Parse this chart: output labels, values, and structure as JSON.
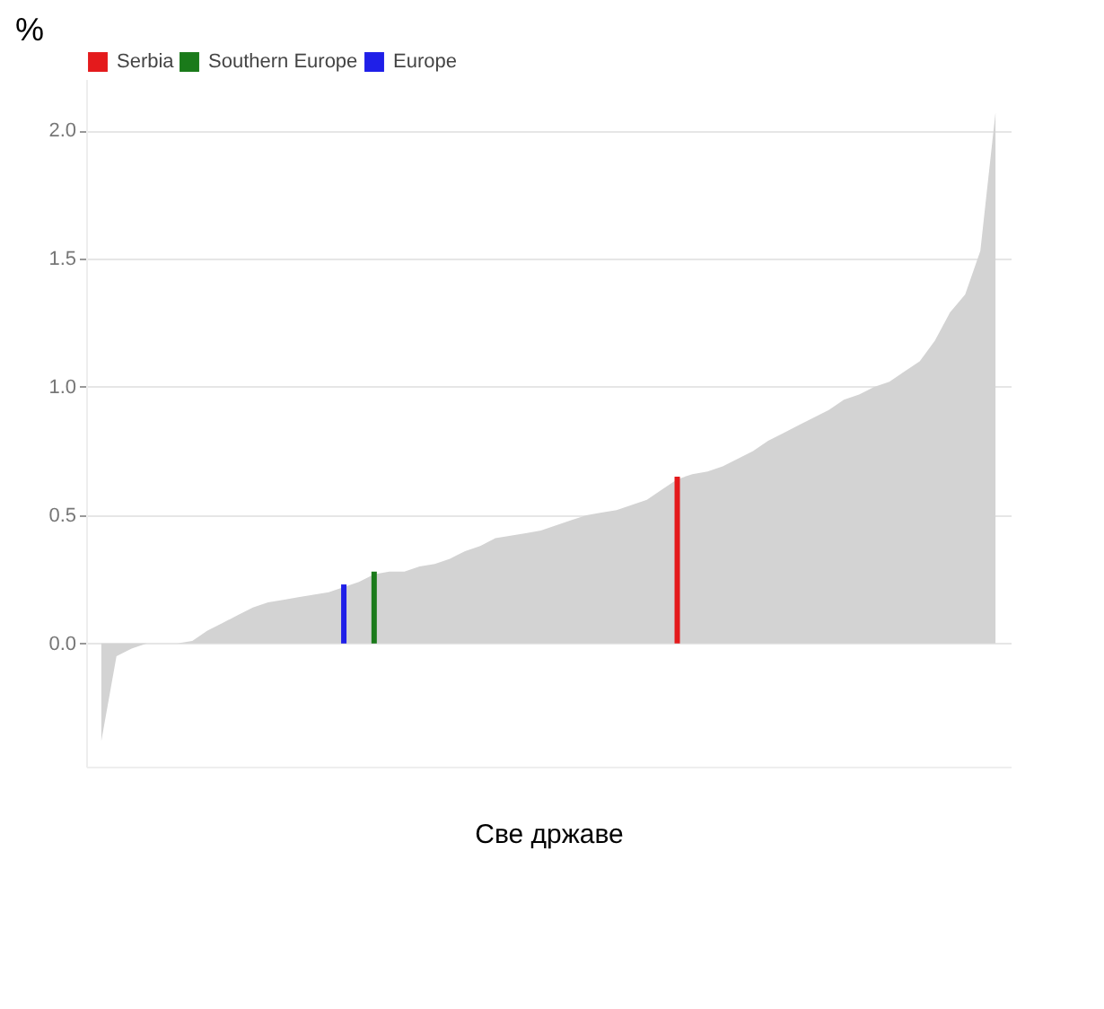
{
  "chart_data": {
    "type": "area",
    "xlabel": "Све  државе",
    "ylabel": "%",
    "categories": [
      null,
      null,
      null,
      null,
      null,
      null,
      null,
      null,
      null,
      null,
      null,
      null,
      null,
      null,
      null,
      null,
      null,
      null,
      null,
      null,
      null,
      null,
      null,
      null,
      null,
      null,
      null,
      null,
      null,
      null,
      null,
      null,
      null,
      null,
      null,
      null,
      null,
      null,
      null,
      null,
      null,
      null,
      null,
      null,
      null,
      null,
      null,
      null,
      null,
      null,
      null,
      null,
      null,
      null,
      null,
      null,
      null,
      null,
      null,
      null
    ],
    "ylim": [
      -0.48,
      2.2
    ],
    "yticks": [
      {
        "value": 0,
        "label": "0.0"
      },
      {
        "value": 0.5,
        "label": "0.5"
      },
      {
        "value": 1,
        "label": "1.0"
      },
      {
        "value": 1.5,
        "label": "1.5"
      },
      {
        "value": 2,
        "label": "2.0"
      }
    ],
    "grid": "y",
    "legend": "top",
    "tick_labels": "y",
    "series": [
      {
        "color": "#d3d3d3",
        "values": [
          -0.38,
          -0.05,
          -0.02,
          0,
          0,
          0,
          0.01,
          0.05,
          0.08,
          0.11,
          0.14,
          0.16,
          0.17,
          0.18,
          0.19,
          0.2,
          0.22,
          0.24,
          0.27,
          0.28,
          0.28,
          0.3,
          0.31,
          0.33,
          0.36,
          0.38,
          0.41,
          0.42,
          0.43,
          0.44,
          0.46,
          0.48,
          0.5,
          0.51,
          0.52,
          0.54,
          0.56,
          0.6,
          0.64,
          0.66,
          0.67,
          0.69,
          0.72,
          0.75,
          0.79,
          0.82,
          0.85,
          0.88,
          0.91,
          0.95,
          0.97,
          1,
          1.02,
          1.06,
          1.1,
          1.18,
          1.29,
          1.36,
          1.53,
          2.07
        ]
      },
      {
        "name": "Serbia",
        "type": "bar",
        "color": "#e41a1c",
        "values": [
          null,
          null,
          null,
          null,
          null,
          null,
          null,
          null,
          null,
          null,
          null,
          null,
          null,
          null,
          null,
          null,
          null,
          null,
          null,
          null,
          null,
          null,
          null,
          null,
          null,
          null,
          null,
          null,
          null,
          null,
          null,
          null,
          null,
          null,
          null,
          null,
          null,
          null,
          0.65,
          null,
          null,
          null,
          null,
          null,
          null,
          null,
          null,
          null,
          null,
          null,
          null,
          null,
          null,
          null,
          null,
          null,
          null,
          null,
          null,
          null
        ]
      },
      {
        "name": "Southern Europe",
        "type": "bar",
        "color": "#1a7a1a",
        "values": [
          null,
          null,
          null,
          null,
          null,
          null,
          null,
          null,
          null,
          null,
          null,
          null,
          null,
          null,
          null,
          null,
          null,
          null,
          0.28,
          null,
          null,
          null,
          null,
          null,
          null,
          null,
          null,
          null,
          null,
          null,
          null,
          null,
          null,
          null,
          null,
          null,
          null,
          null,
          null,
          null,
          null,
          null,
          null,
          null,
          null,
          null,
          null,
          null,
          null,
          null,
          null,
          null,
          null,
          null,
          null,
          null,
          null,
          null,
          null,
          null
        ]
      },
      {
        "name": "Europe",
        "type": "bar",
        "color": "#1f1fe8",
        "values": [
          null,
          null,
          null,
          null,
          null,
          null,
          null,
          null,
          null,
          null,
          null,
          null,
          null,
          null,
          null,
          null,
          0.23,
          null,
          null,
          null,
          null,
          null,
          null,
          null,
          null,
          null,
          null,
          null,
          null,
          null,
          null,
          null,
          null,
          null,
          null,
          null,
          null,
          null,
          null,
          null,
          null,
          null,
          null,
          null,
          null,
          null,
          null,
          null,
          null,
          null,
          null,
          null,
          null,
          null,
          null,
          null,
          null,
          null,
          null,
          null
        ]
      }
    ]
  }
}
